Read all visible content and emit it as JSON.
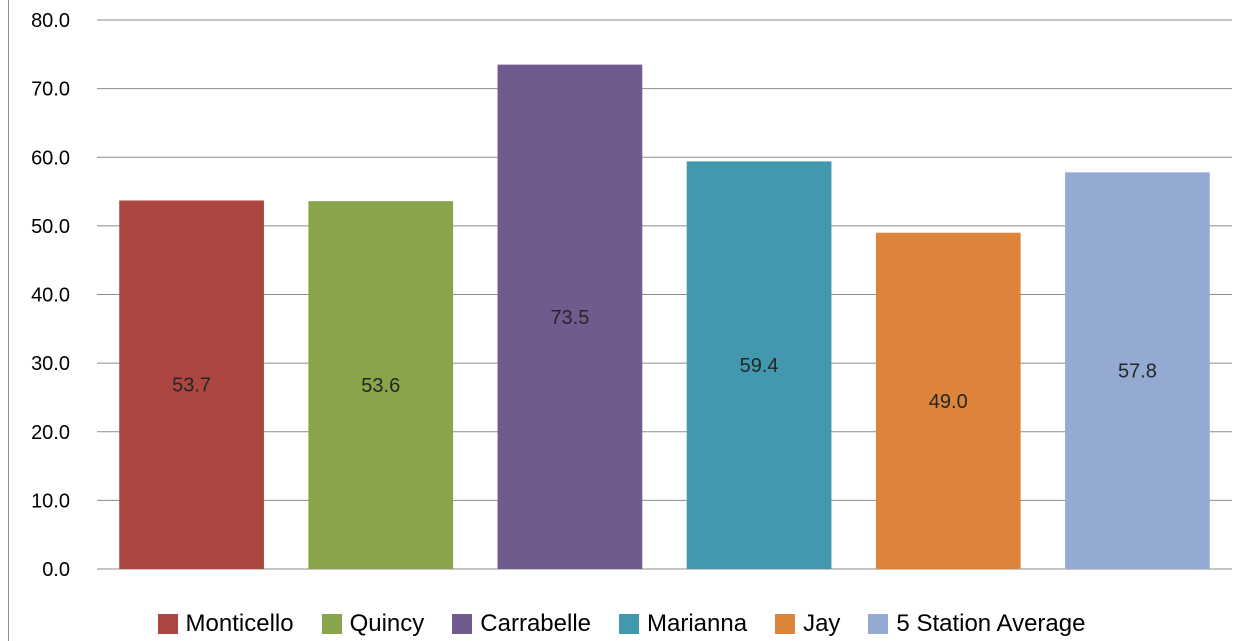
{
  "chart_data": {
    "type": "bar",
    "categories": [
      "Monticello",
      "Quincy",
      "Carrabelle",
      "Marianna",
      "Jay",
      "5 Station Average"
    ],
    "values": [
      53.7,
      53.6,
      73.5,
      59.4,
      49.0,
      57.8
    ],
    "data_labels": [
      "53.7",
      "53.6",
      "73.5",
      "59.4",
      "49.0",
      "57.8"
    ],
    "colors": [
      "#AC4641",
      "#88A54C",
      "#715A8E",
      "#4198AF",
      "#DC843A",
      "#94AAD3"
    ],
    "ylim": [
      0,
      80
    ],
    "y_ticks": [
      0,
      10,
      20,
      30,
      40,
      50,
      60,
      70,
      80
    ],
    "y_tick_labels": [
      "0.0",
      "10.0",
      "20.0",
      "30.0",
      "40.0",
      "50.0",
      "60.0",
      "70.0",
      "80.0"
    ],
    "grid": true,
    "grid_color": "#8c8c8c",
    "legend_position": "bottom",
    "title": "",
    "xlabel": "",
    "ylabel": ""
  }
}
